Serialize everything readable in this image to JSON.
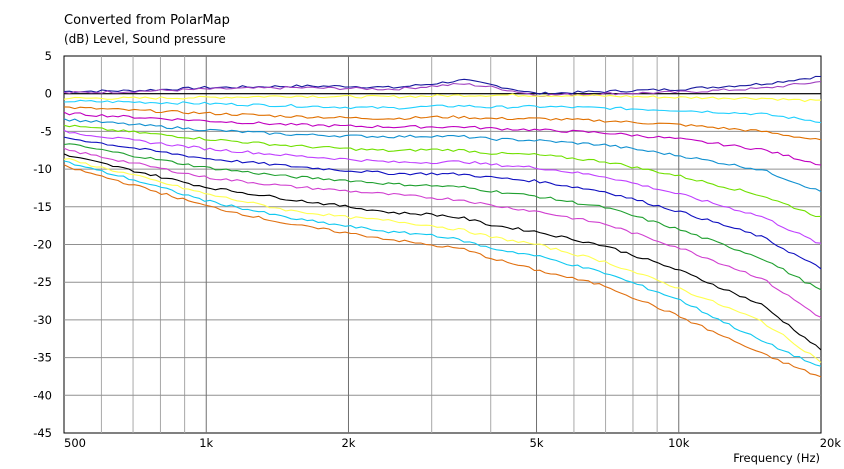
{
  "chart_data": {
    "type": "line",
    "title": "Converted from PolarMap",
    "subtitle": "(dB)  Level, Sound pressure",
    "xlabel": "Frequency  (Hz)",
    "x_scale": "log",
    "xlim": [
      500,
      20000
    ],
    "ylim": [
      -45,
      5
    ],
    "y_ticks": [
      5,
      0,
      -5,
      -10,
      -15,
      -20,
      -25,
      -30,
      -35,
      -40,
      -45
    ],
    "y_tick_labels": [
      "5",
      "0",
      "-5",
      "-10",
      "-15",
      "-20",
      "-25",
      "-30",
      "-35",
      "-40",
      "-45"
    ],
    "x_ticks": [
      500,
      1000,
      2000,
      5000,
      10000,
      20000
    ],
    "x_tick_labels": [
      "500",
      "1k",
      "2k",
      "5k",
      "10k",
      "20k"
    ],
    "x_minor_grid": [
      600,
      700,
      800,
      900,
      3000,
      4000,
      6000,
      7000,
      8000,
      9000
    ],
    "grid": true,
    "x": [
      500,
      700,
      1000,
      1500,
      2000,
      2500,
      3000,
      3500,
      4000,
      5000,
      7000,
      10000,
      15000,
      20000
    ],
    "series": [
      {
        "color": "#000000",
        "values": [
          0,
          0,
          0,
          0,
          0,
          0,
          0,
          0,
          0,
          0,
          0,
          0,
          0,
          0
        ]
      },
      {
        "color": "#1a1a9e",
        "values": [
          0.3,
          0.4,
          0.8,
          1.0,
          1.0,
          0.8,
          1.3,
          1.8,
          1.2,
          0.0,
          0.3,
          0.6,
          1.3,
          2.3
        ]
      },
      {
        "color": "#a040c0",
        "values": [
          0.1,
          0.3,
          0.6,
          0.8,
          0.7,
          0.6,
          1.0,
          1.3,
          0.9,
          -0.2,
          0.0,
          0.2,
          0.7,
          1.6
        ]
      },
      {
        "color": "#ffff40",
        "values": [
          -0.6,
          -0.6,
          -0.5,
          -0.3,
          -0.4,
          -0.4,
          -0.3,
          -0.2,
          -0.2,
          -0.2,
          -0.3,
          -0.5,
          -0.6,
          -1.0
        ]
      },
      {
        "color": "#20d0ff",
        "values": [
          -1.0,
          -1.1,
          -1.3,
          -1.6,
          -1.8,
          -1.9,
          -1.7,
          -1.6,
          -1.8,
          -1.7,
          -1.9,
          -2.2,
          -2.7,
          -3.7
        ]
      },
      {
        "color": "#e07000",
        "values": [
          -1.8,
          -2.2,
          -2.6,
          -3.0,
          -3.2,
          -3.3,
          -3.1,
          -3.1,
          -3.3,
          -3.3,
          -3.6,
          -4.1,
          -5.0,
          -6.2
        ]
      },
      {
        "color": "#c000c0",
        "values": [
          -2.6,
          -3.1,
          -3.6,
          -4.1,
          -4.3,
          -4.4,
          -4.4,
          -4.4,
          -4.6,
          -4.8,
          -5.2,
          -6.0,
          -7.4,
          -9.4
        ]
      },
      {
        "color": "#1090d0",
        "values": [
          -3.4,
          -4.1,
          -4.8,
          -5.4,
          -5.6,
          -5.7,
          -5.6,
          -5.7,
          -6.0,
          -6.2,
          -6.8,
          -8.2,
          -10.1,
          -13.0
        ]
      },
      {
        "color": "#70e000",
        "values": [
          -4.2,
          -5.1,
          -6.0,
          -6.9,
          -7.3,
          -7.6,
          -7.4,
          -7.5,
          -7.9,
          -8.1,
          -9.0,
          -10.9,
          -13.5,
          -16.4
        ]
      },
      {
        "color": "#c040ff",
        "values": [
          -5.0,
          -6.2,
          -7.3,
          -8.2,
          -8.7,
          -9.1,
          -9.1,
          -9.0,
          -9.4,
          -9.8,
          -11.0,
          -13.3,
          -16.3,
          -20.0
        ]
      },
      {
        "color": "#1010c0",
        "values": [
          -5.8,
          -7.2,
          -8.6,
          -9.6,
          -10.2,
          -10.6,
          -10.6,
          -10.7,
          -11.1,
          -11.6,
          -13.0,
          -15.6,
          -19.0,
          -23.2
        ]
      },
      {
        "color": "#20a030",
        "values": [
          -6.6,
          -8.2,
          -9.8,
          -11.0,
          -11.5,
          -12.0,
          -12.2,
          -12.4,
          -12.9,
          -13.6,
          -15.1,
          -18.0,
          -21.8,
          -26.1
        ]
      },
      {
        "color": "#d040d0",
        "values": [
          -7.4,
          -9.2,
          -11.1,
          -12.3,
          -12.9,
          -13.4,
          -13.8,
          -14.1,
          -14.8,
          -15.6,
          -17.3,
          -20.4,
          -24.5,
          -29.7
        ]
      },
      {
        "color": "#000000",
        "values": [
          -8.1,
          -10.2,
          -12.4,
          -14.0,
          -15.0,
          -15.8,
          -16.0,
          -16.5,
          -17.4,
          -18.3,
          -20.2,
          -23.4,
          -28.0,
          -34.0
        ]
      },
      {
        "color": "#ffff50",
        "values": [
          -8.6,
          -10.8,
          -13.3,
          -15.5,
          -16.4,
          -16.9,
          -17.5,
          -18.1,
          -19.0,
          -20.0,
          -22.3,
          -25.8,
          -30.2,
          -35.5
        ]
      },
      {
        "color": "#10c8f0",
        "values": [
          -9.0,
          -11.4,
          -14.2,
          -16.5,
          -17.6,
          -18.4,
          -18.7,
          -19.5,
          -20.5,
          -21.5,
          -23.8,
          -27.3,
          -32.8,
          -36.3
        ]
      },
      {
        "color": "#e07010",
        "values": [
          -9.6,
          -12.1,
          -14.9,
          -17.3,
          -18.5,
          -19.4,
          -20.1,
          -20.6,
          -21.8,
          -23.4,
          -25.5,
          -29.5,
          -34.5,
          -37.6
        ]
      }
    ]
  }
}
